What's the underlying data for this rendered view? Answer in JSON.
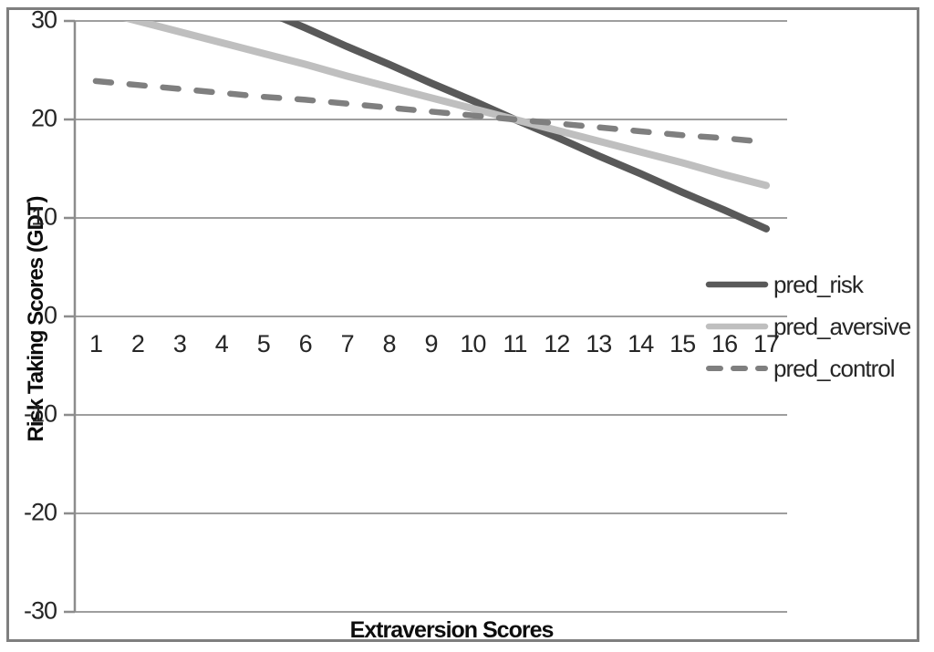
{
  "chart_data": {
    "type": "line",
    "title": "",
    "xlabel": "Extraversion Scores",
    "ylabel": "Risk Taking Scores (GDT)",
    "x": [
      1,
      2,
      3,
      4,
      5,
      6,
      7,
      8,
      9,
      10,
      11,
      12,
      13,
      14,
      15,
      16,
      17
    ],
    "y_ticks": [
      30,
      20,
      10,
      0,
      -10,
      -20,
      -30
    ],
    "ylim": [
      -30,
      30
    ],
    "grid": true,
    "legend_position": "right-middle",
    "series": [
      {
        "name": "pred_risk",
        "style": "solid",
        "color": "#595959",
        "values": [
          38.5,
          36.7,
          34.8,
          33.0,
          31.1,
          29.3,
          27.4,
          25.6,
          23.7,
          21.9,
          20.0,
          18.2,
          16.3,
          14.5,
          12.6,
          10.8,
          8.9
        ]
      },
      {
        "name": "pred_aversive",
        "style": "solid",
        "color": "#bfbfbf",
        "values": [
          31.1,
          30.0,
          28.9,
          27.8,
          26.7,
          25.6,
          24.4,
          23.3,
          22.2,
          21.1,
          20.0,
          18.9,
          17.8,
          16.7,
          15.6,
          14.4,
          13.3
        ]
      },
      {
        "name": "pred_control",
        "style": "dashed",
        "color": "#7f7f7f",
        "values": [
          23.9,
          23.5,
          23.1,
          22.7,
          22.3,
          22.0,
          21.6,
          21.2,
          20.8,
          20.4,
          20.0,
          19.6,
          19.2,
          18.8,
          18.4,
          18.1,
          17.7
        ]
      }
    ],
    "colors": {
      "gridline": "#9e9e9e",
      "axis": "#8c8c8c",
      "border": "#7f7f7f",
      "tick_text": "#262626"
    }
  }
}
